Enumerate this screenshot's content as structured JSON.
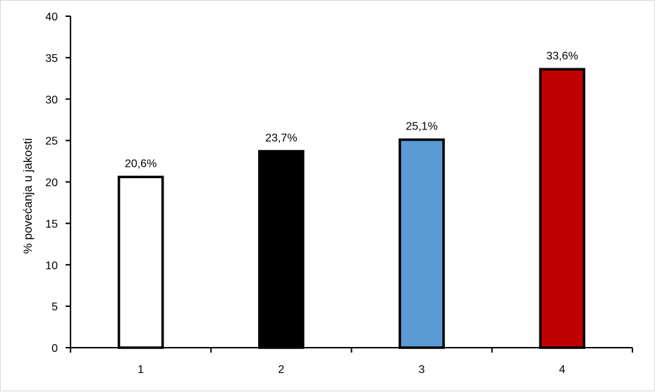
{
  "chart_data": {
    "type": "bar",
    "categories": [
      "1",
      "2",
      "3",
      "4"
    ],
    "values": [
      20.6,
      23.7,
      25.1,
      33.6
    ],
    "data_labels": [
      "20,6%",
      "23,7%",
      "25,1%",
      "33,6%"
    ],
    "bar_colors": [
      "#ffffff",
      "#000000",
      "#5b9bd5",
      "#c00000"
    ],
    "bar_border_color": "#000000",
    "title": "",
    "xlabel": "",
    "ylabel": "% povećanja u jakosti",
    "ylim": [
      0,
      40
    ],
    "yticks": [
      0,
      5,
      10,
      15,
      20,
      25,
      30,
      35,
      40
    ],
    "ytick_labels": [
      "0",
      "5",
      "10",
      "15",
      "20",
      "25",
      "30",
      "35",
      "40"
    ],
    "grid": false,
    "legend": "none"
  }
}
